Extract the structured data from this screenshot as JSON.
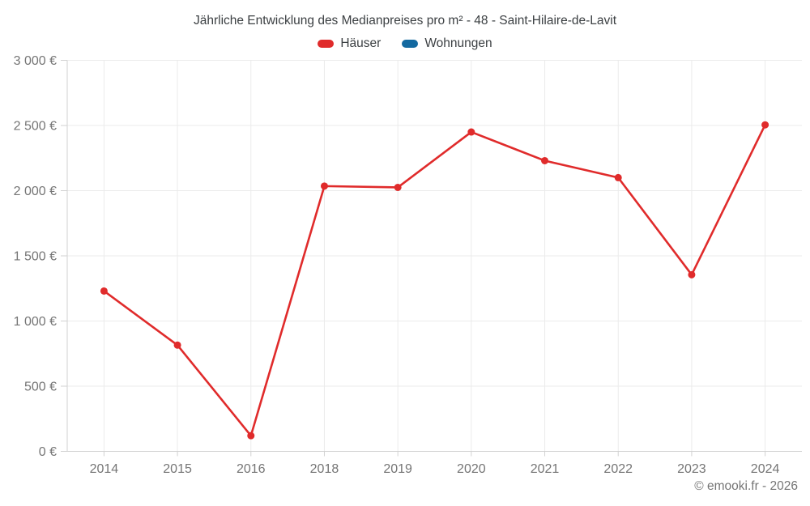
{
  "chart_data": {
    "type": "line",
    "title": "Jährliche Entwicklung des Medianpreises pro m² - 48 - Saint-Hilaire-de-Lavit",
    "categories": [
      "2014",
      "2015",
      "2016",
      "2018",
      "2019",
      "2020",
      "2021",
      "2022",
      "2023",
      "2024"
    ],
    "series": [
      {
        "name": "Häuser",
        "color": "#e02b2b",
        "values": [
          1230,
          815,
          120,
          2035,
          2025,
          2450,
          2230,
          2100,
          1355,
          2505
        ]
      },
      {
        "name": "Wohnungen",
        "color": "#1369a0",
        "values": []
      }
    ],
    "xlabel": "",
    "ylabel": "",
    "ylim": [
      0,
      3000
    ],
    "yticks": [
      {
        "value": 0,
        "label": "0 €"
      },
      {
        "value": 500,
        "label": "500 €"
      },
      {
        "value": 1000,
        "label": "1 000 €"
      },
      {
        "value": 1500,
        "label": "1 500 €"
      },
      {
        "value": 2000,
        "label": "2 000 €"
      },
      {
        "value": 2500,
        "label": "2 500 €"
      },
      {
        "value": 3000,
        "label": "3 000 €"
      }
    ],
    "grid": true,
    "legend_position": "top",
    "colors": {
      "grid": "#ebebeb",
      "axis": "#d2d2d2",
      "tick_text": "#757575",
      "title_text": "#3c4043"
    }
  },
  "footer": {
    "copyright": "© emooki.fr - 2026"
  }
}
